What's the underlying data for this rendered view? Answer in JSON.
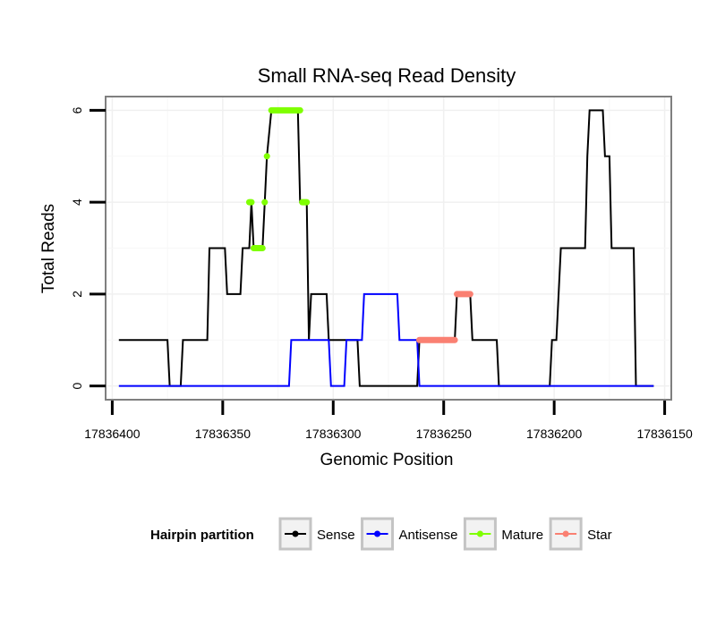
{
  "chart_data": {
    "type": "line",
    "title": "Small RNA-seq Read Density",
    "xlabel": "Genomic Position",
    "ylabel": "Total Reads",
    "x_reversed": true,
    "xlim": [
      17836403,
      17836147
    ],
    "ylim": [
      -0.3,
      6.3
    ],
    "x_ticks": [
      17836400,
      17836350,
      17836300,
      17836250,
      17836200,
      17836150
    ],
    "x_tick_labels": [
      "17836400",
      "17836350",
      "17836300",
      "17836250",
      "17836200",
      "17836150"
    ],
    "y_ticks": [
      0,
      2,
      4,
      6
    ],
    "y_tick_labels": [
      "0",
      "2",
      "4",
      "6"
    ],
    "grid": true,
    "legend": {
      "title": "Hairpin partition",
      "position": "bottom",
      "entries": [
        "Sense",
        "Antisense",
        "Mature",
        "Star"
      ]
    },
    "series": [
      {
        "name": "Sense",
        "color": "#000000",
        "style": "step",
        "points": [
          [
            17836397,
            1
          ],
          [
            17836375,
            1
          ],
          [
            17836374,
            0
          ],
          [
            17836369,
            0
          ],
          [
            17836368,
            1
          ],
          [
            17836357,
            1
          ],
          [
            17836356,
            3
          ],
          [
            17836349,
            3
          ],
          [
            17836348,
            2
          ],
          [
            17836342,
            2
          ],
          [
            17836341,
            3
          ],
          [
            17836338,
            3
          ],
          [
            17836337,
            4
          ],
          [
            17836336,
            3
          ],
          [
            17836332,
            3
          ],
          [
            17836331,
            4
          ],
          [
            17836330,
            5
          ],
          [
            17836328,
            6
          ],
          [
            17836316,
            6
          ],
          [
            17836315,
            4
          ],
          [
            17836312,
            4
          ],
          [
            17836311,
            1
          ],
          [
            17836310,
            2
          ],
          [
            17836303,
            2
          ],
          [
            17836302,
            1
          ],
          [
            17836289,
            1
          ],
          [
            17836288,
            0
          ],
          [
            17836262,
            0
          ],
          [
            17836261,
            1
          ],
          [
            17836245,
            1
          ],
          [
            17836244,
            2
          ],
          [
            17836238,
            2
          ],
          [
            17836237,
            1
          ],
          [
            17836226,
            1
          ],
          [
            17836225,
            0
          ],
          [
            17836202,
            0
          ],
          [
            17836201,
            1
          ],
          [
            17836199,
            1
          ],
          [
            17836198,
            2
          ],
          [
            17836197,
            3
          ],
          [
            17836186,
            3
          ],
          [
            17836185,
            5
          ],
          [
            17836184,
            6
          ],
          [
            17836178,
            6
          ],
          [
            17836177,
            5
          ],
          [
            17836175,
            5
          ],
          [
            17836174,
            3
          ],
          [
            17836164,
            3
          ],
          [
            17836163,
            0
          ],
          [
            17836155,
            0
          ]
        ]
      },
      {
        "name": "Antisense",
        "color": "#0000ff",
        "style": "step",
        "points": [
          [
            17836397,
            0
          ],
          [
            17836320,
            0
          ],
          [
            17836319,
            1
          ],
          [
            17836302,
            1
          ],
          [
            17836301,
            0
          ],
          [
            17836295,
            0
          ],
          [
            17836294,
            1
          ],
          [
            17836287,
            1
          ],
          [
            17836286,
            2
          ],
          [
            17836271,
            2
          ],
          [
            17836270,
            1
          ],
          [
            17836262,
            1
          ],
          [
            17836261,
            0
          ],
          [
            17836155,
            0
          ]
        ]
      },
      {
        "name": "Mature",
        "color": "#7fff00",
        "style": "points",
        "segments": [
          [
            [
              17836338,
              4
            ],
            [
              17836337,
              4
            ]
          ],
          [
            [
              17836336,
              3
            ],
            [
              17836332,
              3
            ]
          ],
          [
            [
              17836331,
              4
            ],
            [
              17836331,
              4
            ]
          ],
          [
            [
              17836330,
              5
            ],
            [
              17836330,
              5
            ]
          ],
          [
            [
              17836328,
              6
            ],
            [
              17836315,
              6
            ]
          ],
          [
            [
              17836314,
              4
            ],
            [
              17836312,
              4
            ]
          ]
        ]
      },
      {
        "name": "Star",
        "color": "#fa8072",
        "style": "points",
        "segments": [
          [
            [
              17836261,
              1
            ],
            [
              17836245,
              1
            ]
          ],
          [
            [
              17836244,
              2
            ],
            [
              17836238,
              2
            ]
          ]
        ]
      }
    ]
  }
}
